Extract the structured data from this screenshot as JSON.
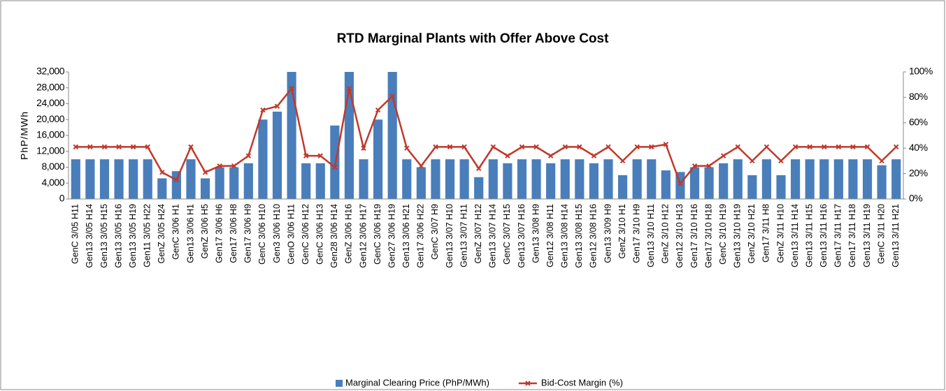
{
  "chart_data": {
    "type": "bar_line",
    "title": "RTD Marginal Plants with Offer Above Cost",
    "y_label": "PhP/MWh",
    "categories": [
      "GenC 3/05 H11",
      "Gen13 3/05 H14",
      "Gen13 3/05 H15",
      "Gen13 3/05 H16",
      "Gen13 3/05 H19",
      "Gen11 3/05 H22",
      "GenZ 3/05 H24",
      "GenC 3/06 H1",
      "Gen13 3/06 H1",
      "GenZ 3/06 H5",
      "Gen17 3/06 H6",
      "Gen17 3/06 H8",
      "Gen17 3/06 H9",
      "GenC 3/06 H10",
      "Gen3 3/06 H10",
      "GenO 3/06 H11",
      "GenC 3/06 H12",
      "GenC 3/06 H13",
      "Gen28 3/06 H14",
      "GenZ 3/06 H16",
      "Gen12 3/06 H17",
      "GenC 3/06 H19",
      "Gen27 3/06 H19",
      "Gen13 3/06 H21",
      "Gen17 3/06 H22",
      "GenC 3/07 H9",
      "Gen13 3/07 H10",
      "Gen13 3/07 H11",
      "GenZ 3/07 H12",
      "Gen13 3/07 H14",
      "GenC 3/07 H15",
      "Gen13 3/07 H16",
      "Gen13 3/08 H9",
      "Gen12 3/08 H11",
      "Gen13 3/08 H14",
      "Gen13 3/08 H15",
      "Gen12 3/08 H16",
      "Gen13 3/09 H9",
      "GenZ 3/10 H1",
      "Gen17 3/10 H9",
      "Gen13 3/10 H11",
      "GenZ 3/10 H12",
      "Gen12 3/10 H13",
      "Gen17 3/10 H16",
      "Gen17 3/10 H18",
      "GenC 3/10 H19",
      "Gen13 3/10 H19",
      "GenZ 3/10 H21",
      "Gen17 3/11 H8",
      "GenZ 3/11 H10",
      "Gen13 3/11 H14",
      "Gen13 3/11 H15",
      "Gen13 3/11 H16",
      "Gen17 3/11 H17",
      "Gen17 3/11 H18",
      "Gen13 3/11 H19",
      "GenC 3/11 H20",
      "Gen13 3/11 H21"
    ],
    "series": [
      {
        "name": "Marginal Clearing Price (PhP/MWh)",
        "type": "bar",
        "color": "#4a7ebb",
        "values": [
          10000,
          10000,
          10000,
          10000,
          10000,
          10000,
          5200,
          7000,
          10000,
          5200,
          8000,
          8000,
          9000,
          20000,
          22000,
          32000,
          9000,
          9000,
          18500,
          32000,
          10000,
          20000,
          32000,
          10000,
          8000,
          10000,
          10000,
          10000,
          5500,
          10000,
          9000,
          10000,
          10000,
          9000,
          10000,
          10000,
          9000,
          10000,
          6000,
          10000,
          10000,
          7200,
          6800,
          8000,
          8000,
          9000,
          10000,
          6000,
          10000,
          6000,
          10000,
          10000,
          10000,
          10000,
          10000,
          10000,
          8500,
          10000
        ]
      },
      {
        "name": "Bid-Cost Margin (%)",
        "type": "line",
        "axis": "y2",
        "color": "#c0392b",
        "values": [
          41,
          41,
          41,
          41,
          41,
          41,
          21,
          15,
          41,
          21,
          26,
          26,
          34,
          70,
          73,
          87,
          34,
          34,
          25,
          87,
          40,
          70,
          81,
          40,
          26,
          41,
          41,
          41,
          24,
          41,
          34,
          41,
          41,
          34,
          41,
          41,
          34,
          41,
          30,
          41,
          41,
          43,
          12,
          26,
          26,
          34,
          41,
          30,
          41,
          30,
          41,
          41,
          41,
          41,
          41,
          41,
          30,
          41
        ]
      }
    ],
    "ylim": [
      0,
      32000
    ],
    "yticks": [
      {
        "value": 0,
        "label": "0"
      },
      {
        "value": 4000,
        "label": "4,000"
      },
      {
        "value": 8000,
        "label": "8,000"
      },
      {
        "value": 12000,
        "label": "12,000"
      },
      {
        "value": 16000,
        "label": "16,000"
      },
      {
        "value": 20000,
        "label": "20,000"
      },
      {
        "value": 24000,
        "label": "24,000"
      },
      {
        "value": 28000,
        "label": "28,000"
      },
      {
        "value": 32000,
        "label": "32,000"
      }
    ],
    "y2lim": [
      0,
      100
    ],
    "y2ticks": [
      {
        "value": 0,
        "label": "0%"
      },
      {
        "value": 20,
        "label": "20%"
      },
      {
        "value": 40,
        "label": "40%"
      },
      {
        "value": 60,
        "label": "60%"
      },
      {
        "value": 80,
        "label": "80%"
      },
      {
        "value": 100,
        "label": "100%"
      }
    ],
    "legend": "bottom"
  }
}
